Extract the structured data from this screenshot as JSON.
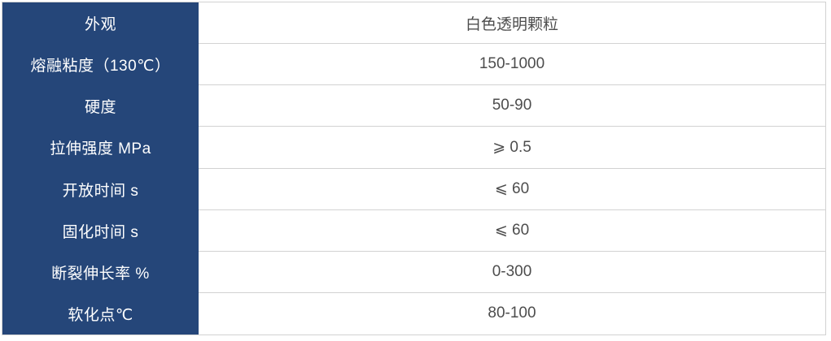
{
  "table": {
    "rows": [
      {
        "label": "外观",
        "value": "白色透明颗粒"
      },
      {
        "label": "熔融粘度（130℃）",
        "value": "150-1000"
      },
      {
        "label": "硬度",
        "value": "50-90"
      },
      {
        "label": "拉伸强度 MPa",
        "value": "⩾ 0.5"
      },
      {
        "label": "开放时间 s",
        "value": "⩽ 60"
      },
      {
        "label": "固化时间 s",
        "value": "⩽ 60"
      },
      {
        "label": "断裂伸长率 %",
        "value": "0-300"
      },
      {
        "label": "软化点℃",
        "value": "80-100"
      }
    ],
    "colors": {
      "label_column_bg": "#254679",
      "label_text": "#ffffff",
      "value_text": "#4d4d4d",
      "divider": "#d2d2d2"
    }
  },
  "chart_data": {
    "type": "table",
    "rows": [
      [
        "外观",
        "白色透明颗粒"
      ],
      [
        "熔融粘度（130℃）",
        "150-1000"
      ],
      [
        "硬度",
        "50-90"
      ],
      [
        "拉伸强度 MPa",
        "⩾ 0.5"
      ],
      [
        "开放时间 s",
        "⩽ 60"
      ],
      [
        "固化时间 s",
        "⩽ 60"
      ],
      [
        "断裂伸长率 %",
        "0-300"
      ],
      [
        "软化点℃",
        "80-100"
      ]
    ],
    "layout": {
      "grid": "horizontal dividers on value column only",
      "legend": "none",
      "title": ""
    }
  }
}
